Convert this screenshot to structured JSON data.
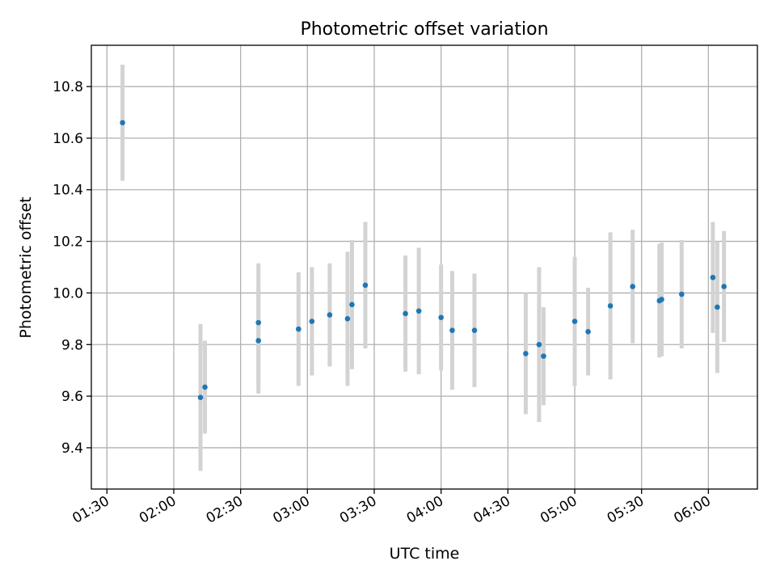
{
  "chart_data": {
    "type": "scatter",
    "title": "Photometric offset variation",
    "xlabel": "UTC time",
    "ylabel": "Photometric offset",
    "x_tick_labels": [
      "01:30",
      "02:00",
      "02:30",
      "03:00",
      "03:30",
      "04:00",
      "04:30",
      "05:00",
      "05:30",
      "06:00"
    ],
    "x_ticks": [
      "01:30",
      "02:00",
      "02:30",
      "03:00",
      "03:30",
      "04:00",
      "04:30",
      "05:00",
      "05:30",
      "06:00"
    ],
    "y_tick_labels": [
      "9.4",
      "9.6",
      "9.8",
      "10.0",
      "10.2",
      "10.4",
      "10.6",
      "10.8"
    ],
    "y_ticks": [
      9.4,
      9.6,
      9.8,
      10.0,
      10.2,
      10.4,
      10.6,
      10.8
    ],
    "xlim": [
      "01:23",
      "06:22"
    ],
    "ylim": [
      9.24,
      10.96
    ],
    "grid": true,
    "colors": {
      "points": "#1f77b4",
      "error_bars": "#d3d3d3"
    },
    "points": [
      {
        "x": "01:37",
        "y": 10.66,
        "err": 0.225
      },
      {
        "x": "02:12",
        "y": 9.595,
        "err": 0.285
      },
      {
        "x": "02:14",
        "y": 9.635,
        "err": 0.18
      },
      {
        "x": "02:38",
        "y": 9.885,
        "err": 0.23
      },
      {
        "x": "02:38",
        "y": 9.815,
        "err": 0.205
      },
      {
        "x": "02:56",
        "y": 9.86,
        "err": 0.22
      },
      {
        "x": "03:02",
        "y": 9.89,
        "err": 0.21
      },
      {
        "x": "03:10",
        "y": 9.915,
        "err": 0.2
      },
      {
        "x": "03:18",
        "y": 9.9,
        "err": 0.26
      },
      {
        "x": "03:20",
        "y": 9.955,
        "err": 0.25
      },
      {
        "x": "03:26",
        "y": 10.03,
        "err": 0.245
      },
      {
        "x": "03:44",
        "y": 9.92,
        "err": 0.225
      },
      {
        "x": "03:50",
        "y": 9.93,
        "err": 0.245
      },
      {
        "x": "04:00",
        "y": 9.905,
        "err": 0.205
      },
      {
        "x": "04:05",
        "y": 9.855,
        "err": 0.23
      },
      {
        "x": "04:15",
        "y": 9.855,
        "err": 0.22
      },
      {
        "x": "04:38",
        "y": 9.765,
        "err": 0.235
      },
      {
        "x": "04:44",
        "y": 9.8,
        "err": 0.3
      },
      {
        "x": "04:46",
        "y": 9.755,
        "err": 0.19
      },
      {
        "x": "05:00",
        "y": 9.89,
        "err": 0.25
      },
      {
        "x": "05:06",
        "y": 9.85,
        "err": 0.17
      },
      {
        "x": "05:16",
        "y": 9.95,
        "err": 0.285
      },
      {
        "x": "05:26",
        "y": 10.025,
        "err": 0.22
      },
      {
        "x": "05:38",
        "y": 9.97,
        "err": 0.22
      },
      {
        "x": "05:39",
        "y": 9.975,
        "err": 0.22
      },
      {
        "x": "05:48",
        "y": 9.995,
        "err": 0.21
      },
      {
        "x": "06:02",
        "y": 10.06,
        "err": 0.215
      },
      {
        "x": "06:04",
        "y": 9.945,
        "err": 0.255
      },
      {
        "x": "06:07",
        "y": 10.025,
        "err": 0.215
      }
    ]
  }
}
